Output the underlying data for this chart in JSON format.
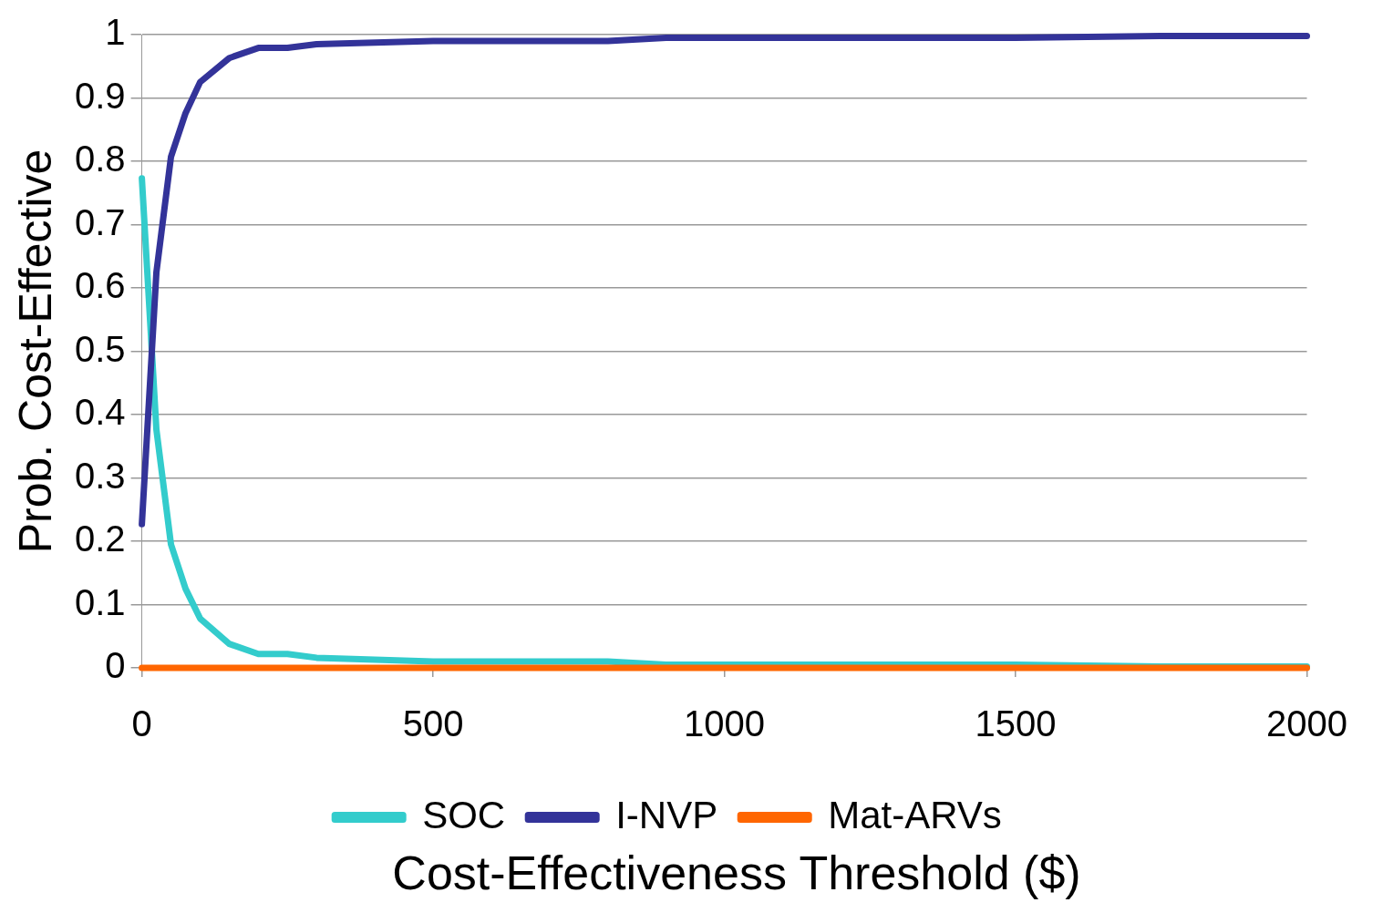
{
  "chart_data": {
    "type": "line",
    "xlabel": "Cost-Effectiveness Threshold ($)",
    "ylabel": "Prob. Cost-Effective",
    "x": [
      0,
      25,
      50,
      75,
      100,
      150,
      200,
      250,
      300,
      500,
      800,
      900,
      1500,
      1750,
      2000
    ],
    "series": [
      {
        "name": "SOC",
        "color": "#33cccc",
        "values": [
          0.773,
          0.376,
          0.195,
          0.125,
          0.078,
          0.038,
          0.022,
          0.022,
          0.016,
          0.01,
          0.01,
          0.005,
          0.005,
          0.002,
          0.002
        ]
      },
      {
        "name": "I-NVP",
        "color": "#333399",
        "values": [
          0.227,
          0.625,
          0.807,
          0.876,
          0.925,
          0.963,
          0.979,
          0.979,
          0.985,
          0.99,
          0.99,
          0.995,
          0.995,
          0.998,
          0.998
        ]
      },
      {
        "name": "Mat-ARVs",
        "color": "#ff6600",
        "values": [
          0,
          0,
          0,
          0,
          0,
          0,
          0,
          0,
          0,
          0,
          0,
          0,
          0,
          0,
          0
        ]
      }
    ],
    "xlim": [
      0,
      2000
    ],
    "xticks": [
      0,
      500,
      1000,
      1500,
      2000
    ],
    "ylim": [
      0,
      1
    ],
    "yticks": [
      0,
      0.1,
      0.2,
      0.3,
      0.4,
      0.5,
      0.6,
      0.7,
      0.8,
      0.9,
      1
    ],
    "grid": "y",
    "legend": "bottom",
    "marker": "none",
    "line_style": "solid"
  }
}
